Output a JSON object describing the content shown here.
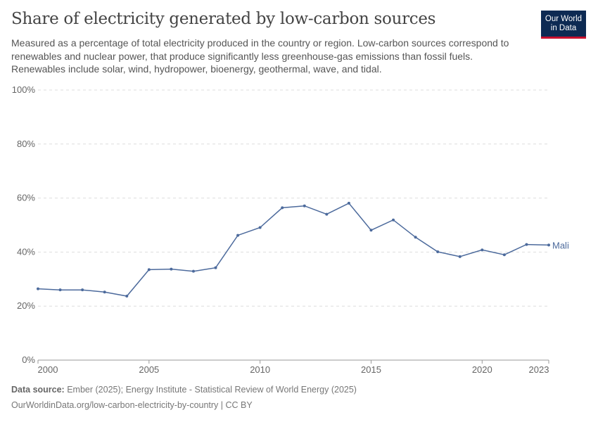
{
  "header": {
    "title": "Share of electricity generated by low-carbon sources",
    "subtitle": "Measured as a percentage of total electricity produced in the country or region. Low-carbon sources correspond to renewables and nuclear power, that produce significantly less greenhouse-gas emissions than fossil fuels. Renewables include solar, wind, hydropower, bioenergy, geothermal, wave, and tidal.",
    "logo": "Our World in Data"
  },
  "footer": {
    "source_label": "Data source:",
    "source": "Ember (2025); Energy Institute - Statistical Review of World Energy (2025)",
    "url": "OurWorldinData.org/low-carbon-electricity-by-country | CC BY"
  },
  "colors": {
    "series": "#4c6a9c",
    "grid": "#dddddd",
    "axis": "#666666"
  },
  "chart_data": {
    "type": "line",
    "title": "Share of electricity generated by low-carbon sources",
    "ylim": [
      0,
      100
    ],
    "yticks": [
      "0%",
      "20%",
      "40%",
      "60%",
      "80%",
      "100%"
    ],
    "ytick_values": [
      0,
      20,
      40,
      60,
      80,
      100
    ],
    "xticks": [
      "2000",
      "2005",
      "2010",
      "2015",
      "2020",
      "2023"
    ],
    "xtick_values": [
      2000,
      2005,
      2010,
      2015,
      2020,
      2023
    ],
    "xlim": [
      2000,
      2023
    ],
    "grid": "horizontal dashed",
    "series": [
      {
        "name": "Mali",
        "x": [
          2000,
          2001,
          2002,
          2003,
          2004,
          2005,
          2006,
          2007,
          2008,
          2009,
          2010,
          2011,
          2012,
          2013,
          2014,
          2015,
          2016,
          2017,
          2018,
          2019,
          2020,
          2021,
          2022,
          2023
        ],
        "values": [
          26.4,
          26.0,
          26.0,
          25.2,
          23.7,
          33.5,
          33.7,
          32.9,
          34.2,
          46.2,
          49.1,
          56.4,
          57.1,
          54.0,
          58.1,
          48.1,
          51.9,
          45.5,
          40.1,
          38.3,
          40.8,
          39.0,
          42.8,
          42.6
        ]
      }
    ]
  }
}
